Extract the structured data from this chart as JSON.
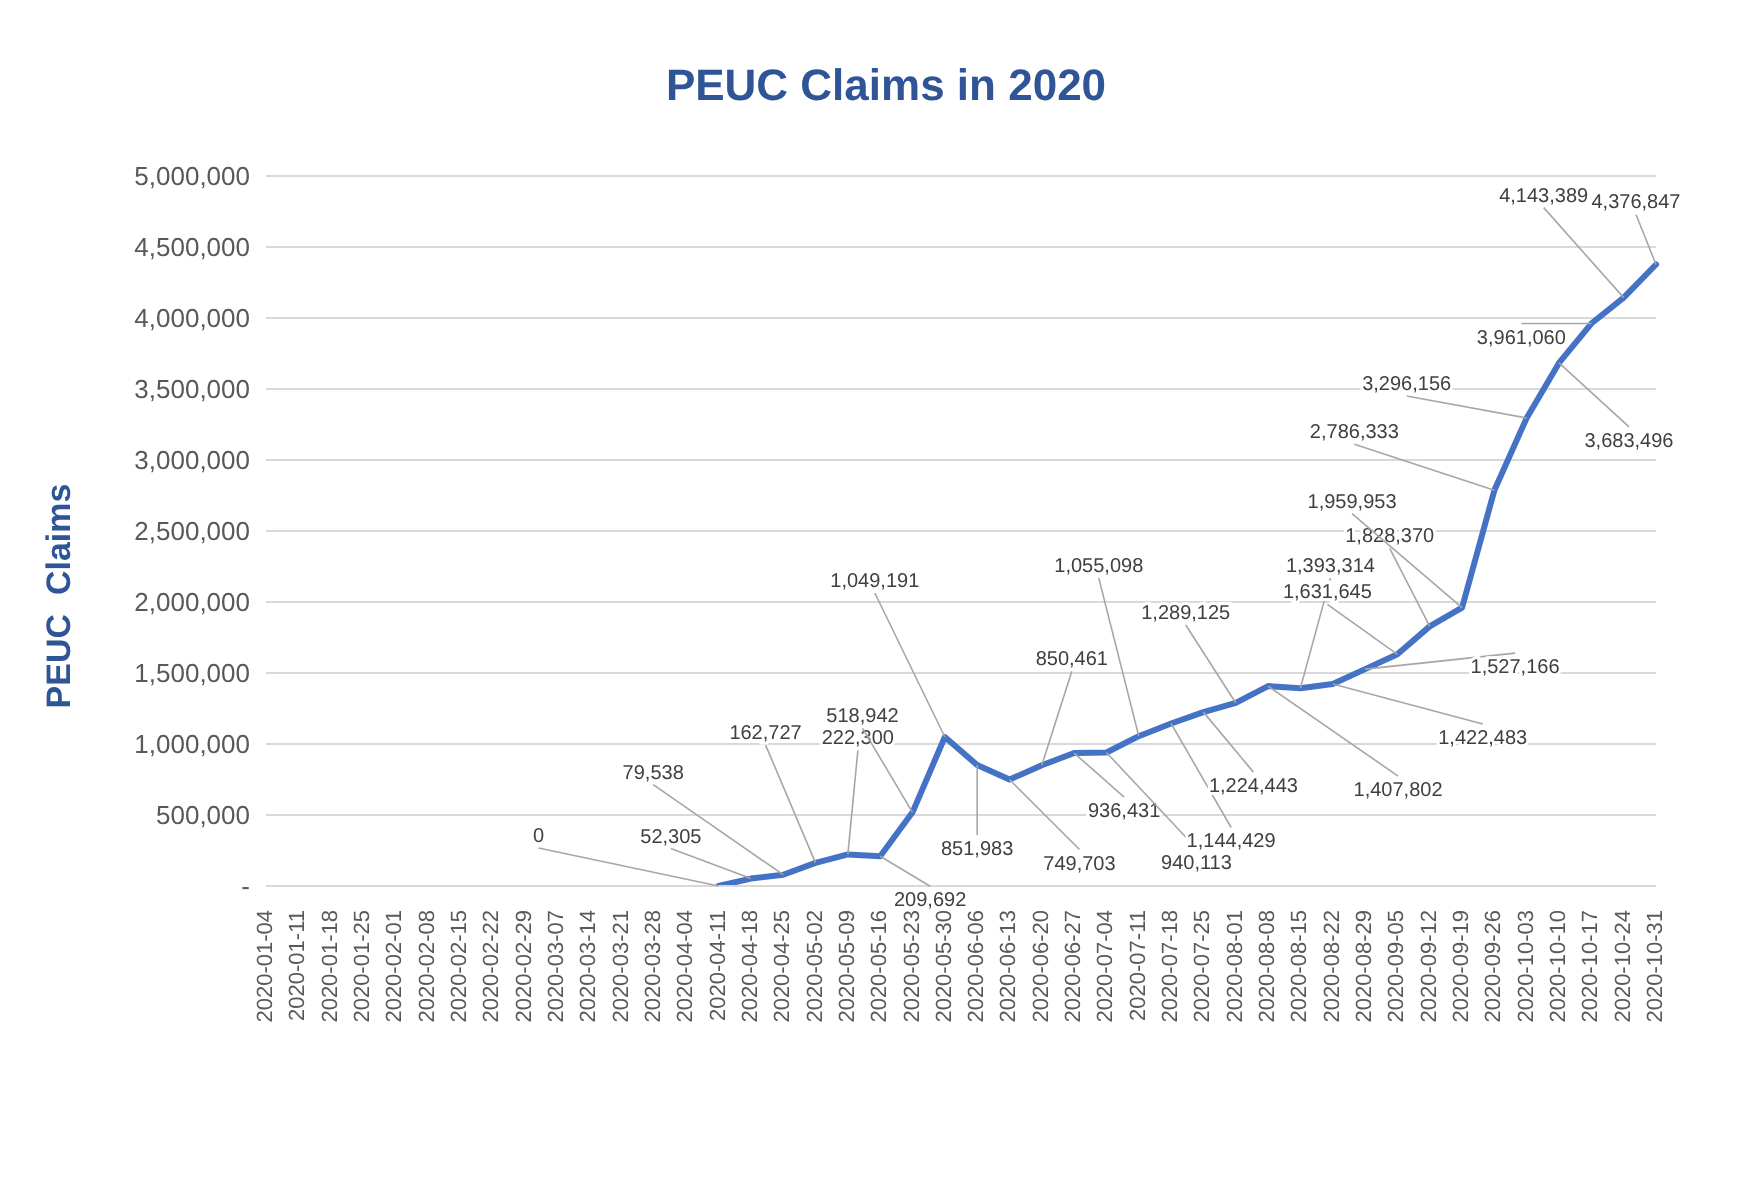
{
  "chart_data": {
    "type": "line",
    "title": "PEUC Claims in 2020",
    "ylabel": "PEUC  Claims",
    "categories": [
      "2020-01-04",
      "2020-01-11",
      "2020-01-18",
      "2020-01-25",
      "2020-02-01",
      "2020-02-08",
      "2020-02-15",
      "2020-02-22",
      "2020-02-29",
      "2020-03-07",
      "2020-03-14",
      "2020-03-21",
      "2020-03-28",
      "2020-04-04",
      "2020-04-11",
      "2020-04-18",
      "2020-04-25",
      "2020-05-02",
      "2020-05-09",
      "2020-05-16",
      "2020-05-23",
      "2020-05-30",
      "2020-06-06",
      "2020-06-13",
      "2020-06-20",
      "2020-06-27",
      "2020-07-04",
      "2020-07-11",
      "2020-07-18",
      "2020-07-25",
      "2020-08-01",
      "2020-08-08",
      "2020-08-15",
      "2020-08-22",
      "2020-08-29",
      "2020-09-05",
      "2020-09-12",
      "2020-09-19",
      "2020-09-26",
      "2020-10-03",
      "2020-10-10",
      "2020-10-17",
      "2020-10-24",
      "2020-10-31"
    ],
    "series": [
      {
        "color": "#4472c4",
        "values": [
          null,
          null,
          null,
          null,
          null,
          null,
          null,
          null,
          null,
          null,
          null,
          null,
          null,
          null,
          0,
          52305,
          79538,
          162727,
          222300,
          209692,
          518942,
          1049191,
          851983,
          749703,
          850461,
          936431,
          940113,
          1055098,
          1144429,
          1224443,
          1289125,
          1407802,
          1393314,
          1422483,
          1527166,
          1631645,
          1828370,
          1959953,
          2786333,
          3296156,
          3683496,
          3961060,
          4143389,
          4376847
        ],
        "value_labels": [
          null,
          null,
          null,
          null,
          null,
          null,
          null,
          null,
          null,
          null,
          null,
          null,
          null,
          null,
          "0",
          "52,305",
          "79,538",
          "162,727",
          "222,300",
          "209,692",
          "518,942",
          "1,049,191",
          "851,983",
          "749,703",
          "850,461",
          "936,431",
          "940,113",
          "1,055,098",
          "1,144,429",
          "1,224,443",
          "1,289,125",
          "1,407,802",
          "1,393,314",
          "1,422,483",
          "1,527,166",
          "1,631,645",
          "1,828,370",
          "1,959,953",
          "2,786,333",
          "3,296,156",
          "3,683,496",
          "3,961,060",
          "4,143,389",
          "4,376,847"
        ]
      }
    ],
    "ylim": [
      0,
      5000000
    ],
    "yticks": [
      {
        "value": 0,
        "label": "-"
      },
      {
        "value": 500000,
        "label": "500,000"
      },
      {
        "value": 1000000,
        "label": "1,000,000"
      },
      {
        "value": 1500000,
        "label": "1,500,000"
      },
      {
        "value": 2000000,
        "label": "2,000,000"
      },
      {
        "value": 2500000,
        "label": "2,500,000"
      },
      {
        "value": 3000000,
        "label": "3,000,000"
      },
      {
        "value": 3500000,
        "label": "3,500,000"
      },
      {
        "value": 4000000,
        "label": "4,000,000"
      },
      {
        "value": 4500000,
        "label": "4,500,000"
      },
      {
        "value": 5000000,
        "label": "5,000,000"
      }
    ],
    "grid": "y",
    "marker": "none",
    "line_style": "solid",
    "legend": false
  }
}
